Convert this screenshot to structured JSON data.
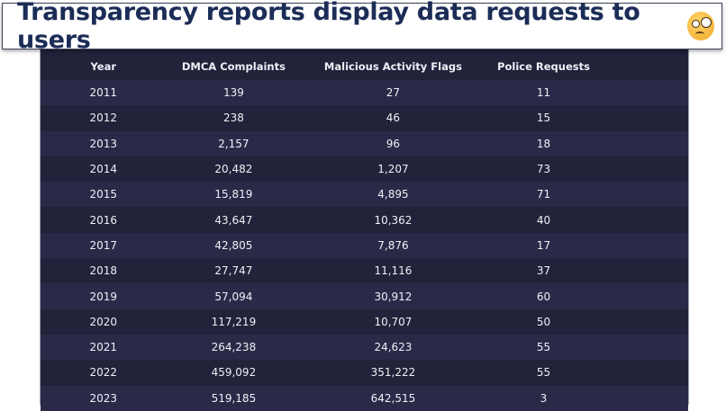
{
  "banner": {
    "title": "Transparency reports display data requests to users",
    "emoji": "face-with-monocle"
  },
  "table": {
    "headers": [
      "Year",
      "DMCA Complaints",
      "Malicious Activity Flags",
      "Police Requests"
    ],
    "rows": [
      [
        "2011",
        "139",
        "27",
        "11"
      ],
      [
        "2012",
        "238",
        "46",
        "15"
      ],
      [
        "2013",
        "2,157",
        "96",
        "18"
      ],
      [
        "2014",
        "20,482",
        "1,207",
        "73"
      ],
      [
        "2015",
        "15,819",
        "4,895",
        "71"
      ],
      [
        "2016",
        "43,647",
        "10,362",
        "40"
      ],
      [
        "2017",
        "42,805",
        "7,876",
        "17"
      ],
      [
        "2018",
        "27,747",
        "11,116",
        "37"
      ],
      [
        "2019",
        "57,094",
        "30,912",
        "60"
      ],
      [
        "2020",
        "117,219",
        "10,707",
        "50"
      ],
      [
        "2021",
        "264,238",
        "24,623",
        "55"
      ],
      [
        "2022",
        "459,092",
        "351,222",
        "55"
      ],
      [
        "2023",
        "519,185",
        "642,515",
        "3"
      ]
    ]
  },
  "colors": {
    "title": "#1b2d57",
    "row_dark": "#22223a",
    "row_light": "#2a2a48"
  }
}
